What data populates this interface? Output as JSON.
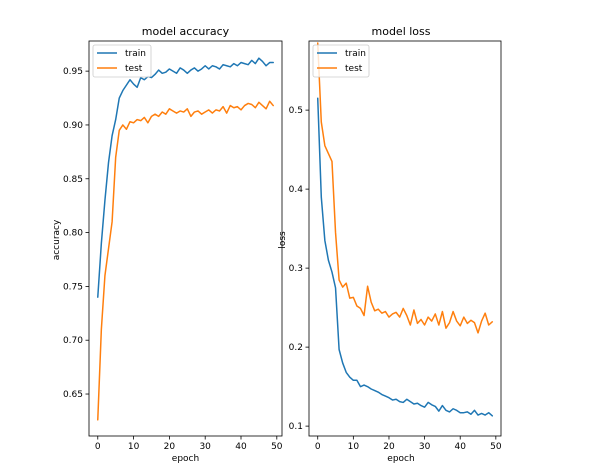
{
  "chart_data": [
    {
      "type": "line",
      "title": "model accuracy",
      "xlabel": "epoch",
      "ylabel": "accuracy",
      "xlim": [
        -2.45,
        51.45
      ],
      "ylim": [
        0.611,
        0.978
      ],
      "xticks": [
        0,
        10,
        20,
        30,
        40,
        50
      ],
      "yticks": [
        0.65,
        0.7,
        0.75,
        0.8,
        0.85,
        0.9,
        0.95
      ],
      "ytick_labels": [
        "0.65",
        "0.70",
        "0.75",
        "0.80",
        "0.85",
        "0.90",
        "0.95"
      ],
      "grid": false,
      "legend_position": "upper-left",
      "x": [
        0,
        1,
        2,
        3,
        4,
        5,
        6,
        7,
        8,
        9,
        10,
        11,
        12,
        13,
        14,
        15,
        16,
        17,
        18,
        19,
        20,
        21,
        22,
        23,
        24,
        25,
        26,
        27,
        28,
        29,
        30,
        31,
        32,
        33,
        34,
        35,
        36,
        37,
        38,
        39,
        40,
        41,
        42,
        43,
        44,
        45,
        46,
        47,
        48,
        49
      ],
      "series": [
        {
          "name": "train",
          "color": "#1f77b4",
          "values": [
            0.74,
            0.79,
            0.83,
            0.865,
            0.89,
            0.905,
            0.925,
            0.932,
            0.937,
            0.942,
            0.938,
            0.935,
            0.944,
            0.942,
            0.945,
            0.944,
            0.947,
            0.951,
            0.948,
            0.949,
            0.952,
            0.95,
            0.948,
            0.953,
            0.951,
            0.948,
            0.951,
            0.953,
            0.95,
            0.952,
            0.955,
            0.952,
            0.955,
            0.954,
            0.952,
            0.956,
            0.955,
            0.954,
            0.957,
            0.955,
            0.958,
            0.957,
            0.956,
            0.96,
            0.957,
            0.962,
            0.959,
            0.955,
            0.958,
            0.958
          ]
        },
        {
          "name": "test",
          "color": "#ff7f0e",
          "values": [
            0.626,
            0.71,
            0.76,
            0.785,
            0.81,
            0.87,
            0.895,
            0.9,
            0.896,
            0.903,
            0.902,
            0.905,
            0.904,
            0.907,
            0.902,
            0.908,
            0.91,
            0.908,
            0.912,
            0.91,
            0.915,
            0.913,
            0.911,
            0.913,
            0.912,
            0.915,
            0.908,
            0.912,
            0.913,
            0.91,
            0.912,
            0.914,
            0.911,
            0.914,
            0.913,
            0.917,
            0.911,
            0.918,
            0.916,
            0.917,
            0.914,
            0.918,
            0.92,
            0.919,
            0.916,
            0.921,
            0.918,
            0.915,
            0.922,
            0.918
          ]
        }
      ]
    },
    {
      "type": "line",
      "title": "model loss",
      "xlabel": "epoch",
      "ylabel": "loss",
      "xlim": [
        -2.45,
        51.45
      ],
      "ylim": [
        0.0875,
        0.5875
      ],
      "xticks": [
        0,
        10,
        20,
        30,
        40,
        50
      ],
      "yticks": [
        0.1,
        0.2,
        0.3,
        0.4,
        0.5
      ],
      "ytick_labels": [
        "0.1",
        "0.2",
        "0.3",
        "0.4",
        "0.5"
      ],
      "grid": false,
      "legend_position": "upper-left",
      "x": [
        0,
        1,
        2,
        3,
        4,
        5,
        6,
        7,
        8,
        9,
        10,
        11,
        12,
        13,
        14,
        15,
        16,
        17,
        18,
        19,
        20,
        21,
        22,
        23,
        24,
        25,
        26,
        27,
        28,
        29,
        30,
        31,
        32,
        33,
        34,
        35,
        36,
        37,
        38,
        39,
        40,
        41,
        42,
        43,
        44,
        45,
        46,
        47,
        48,
        49
      ],
      "series": [
        {
          "name": "train",
          "color": "#1f77b4",
          "values": [
            0.515,
            0.39,
            0.335,
            0.31,
            0.295,
            0.275,
            0.197,
            0.18,
            0.168,
            0.162,
            0.158,
            0.158,
            0.15,
            0.152,
            0.15,
            0.147,
            0.145,
            0.143,
            0.14,
            0.138,
            0.136,
            0.133,
            0.134,
            0.131,
            0.13,
            0.134,
            0.131,
            0.128,
            0.129,
            0.126,
            0.124,
            0.13,
            0.127,
            0.125,
            0.119,
            0.126,
            0.12,
            0.118,
            0.122,
            0.12,
            0.117,
            0.117,
            0.118,
            0.115,
            0.12,
            0.114,
            0.116,
            0.114,
            0.117,
            0.113
          ]
        },
        {
          "name": "test",
          "color": "#ff7f0e",
          "values": [
            0.585,
            0.485,
            0.455,
            0.445,
            0.435,
            0.345,
            0.285,
            0.276,
            0.281,
            0.262,
            0.263,
            0.252,
            0.249,
            0.24,
            0.277,
            0.257,
            0.246,
            0.248,
            0.243,
            0.245,
            0.238,
            0.242,
            0.244,
            0.238,
            0.249,
            0.24,
            0.228,
            0.247,
            0.23,
            0.235,
            0.228,
            0.238,
            0.233,
            0.242,
            0.228,
            0.245,
            0.224,
            0.231,
            0.245,
            0.233,
            0.227,
            0.238,
            0.23,
            0.234,
            0.231,
            0.218,
            0.233,
            0.243,
            0.228,
            0.232
          ]
        }
      ]
    }
  ]
}
